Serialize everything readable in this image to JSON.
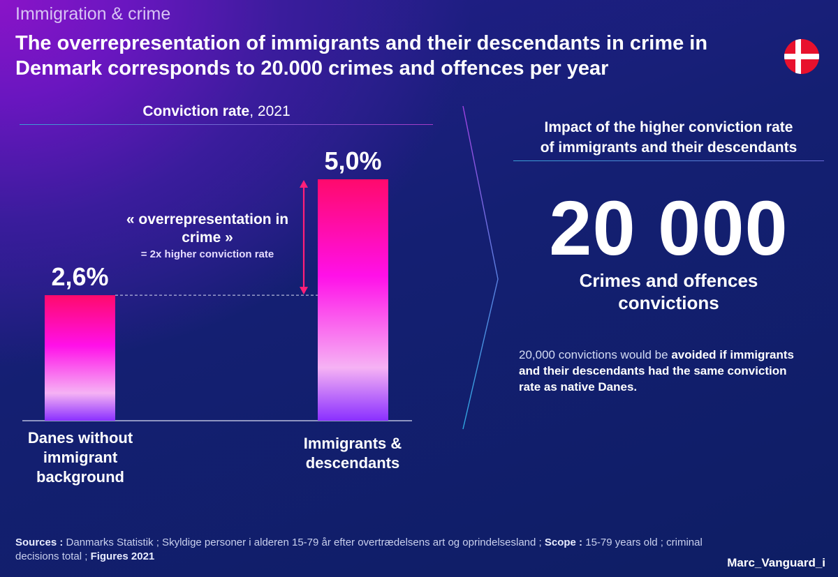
{
  "header": {
    "kicker": "Immigration & crime",
    "title": "The overrepresentation of immigrants and their descendants in crime in Denmark corresponds to 20.000 crimes and offences per year"
  },
  "colors": {
    "bar_top": "#ff0a6c",
    "bar_mid": "#ff10e8",
    "bar_light": "#f6b2f4",
    "bar_bottom": "#8a30ff",
    "arrow": "#ff1f78",
    "flag_red": "#e8112d"
  },
  "chart_caption": {
    "bold": "Conviction rate",
    "rest": ", 2021"
  },
  "annotation": {
    "line1": "« overrepresentation in",
    "line2": "crime »",
    "sub": "= 2x higher conviction rate"
  },
  "chart_data": {
    "type": "bar",
    "title": "Conviction rate, 2021",
    "categories": [
      "Danes without immigrant background",
      "Immigrants & descendants"
    ],
    "category_lines": [
      [
        "Danes without",
        "immigrant",
        "background"
      ],
      [
        "Immigrants &",
        "descendants"
      ]
    ],
    "values": [
      2.6,
      5.0
    ],
    "value_labels": [
      "2,6%",
      "5,0%"
    ],
    "unit": "%",
    "ylim": [
      0,
      5.0
    ],
    "xlabel": "",
    "ylabel": "",
    "grid": false
  },
  "impact": {
    "heading_line1": "Impact of the higher conviction rate",
    "heading_line2": "of immigrants and their descendants",
    "big_number": "20 000",
    "big_label_line1": "Crimes and offences",
    "big_label_line2": "convictions",
    "note_pre": "20,000 convictions would be ",
    "note_bold": "avoided if immigrants and their descendants had the same conviction rate as native Danes."
  },
  "footer": {
    "sources_label": "Sources :",
    "sources_text": " Danmarks Statistik ; Skyldige personer i alderen 15-79 år efter overtrædelsens art og oprindelsesland ; ",
    "scope_label": "Scope :",
    "scope_text": " 15-79 years old ; criminal decisions total ; ",
    "figures_label": "Figures 2021",
    "handle": "Marc_Vanguard_i"
  }
}
